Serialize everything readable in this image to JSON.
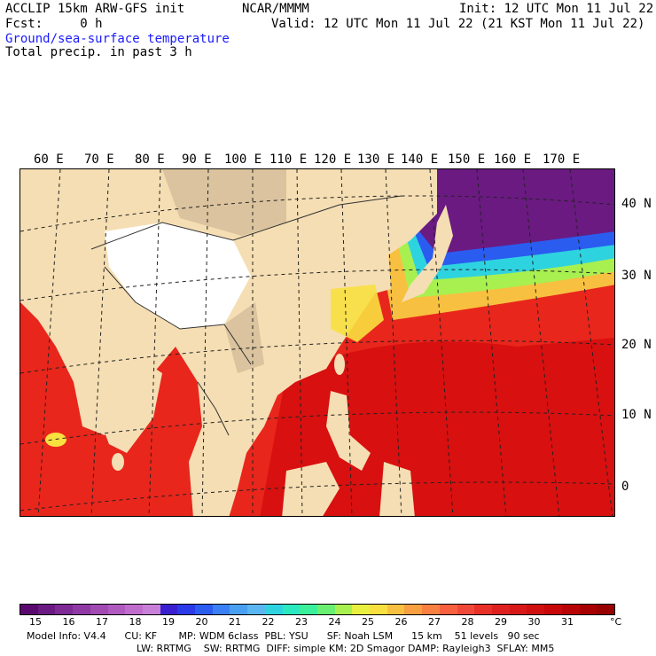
{
  "header": {
    "model_title": "ACCLIP 15km ARW-GFS init",
    "center": "NCAR/MMMM",
    "init": "Init: 12 UTC Mon 11 Jul 22",
    "fcst": "Fcst:     0 h",
    "valid": "Valid: 12 UTC Mon 11 Jul 22 (21 KST Mon 11 Jul 22)",
    "field1": "Ground/sea-surface temperature",
    "field2": "Total precip. in past 3 h"
  },
  "map": {
    "lon_labels": [
      "60 E",
      "70 E",
      "80 E",
      "90 E",
      "100 E",
      "110 E",
      "120 E",
      "130 E",
      "140 E",
      "150 E",
      "160 E",
      "170 E"
    ],
    "lat_labels": [
      "40 N",
      "30 N",
      "20 N",
      "10 N",
      "0"
    ],
    "colors": {
      "land": "#f5deb3",
      "ocean_warm": "#e8261c",
      "ocean_hot": "#d81010",
      "border": "#333333",
      "grid": "#222222",
      "snow": "#ffffff"
    }
  },
  "colorbar": {
    "unit": "°C",
    "tick_labels": [
      "15",
      "16",
      "17",
      "18",
      "19",
      "20",
      "21",
      "22",
      "23",
      "24",
      "25",
      "26",
      "27",
      "28",
      "29",
      "30",
      "31"
    ],
    "colors": [
      "#5a0a6e",
      "#6b1a82",
      "#7d2a94",
      "#8f3aa4",
      "#a04ab2",
      "#b05abf",
      "#c06ccc",
      "#c87fd8",
      "#3a1fd0",
      "#2a3ae8",
      "#2a5cf0",
      "#3a80f4",
      "#4aa0f0",
      "#5ab6f0",
      "#2ed3e0",
      "#2ae8c0",
      "#3af09a",
      "#6af070",
      "#a8f050",
      "#e8f040",
      "#f8e040",
      "#f8c040",
      "#f8a040",
      "#f88040",
      "#f86040",
      "#f04838",
      "#e83028",
      "#e02020",
      "#d81818",
      "#d01010",
      "#c80808",
      "#b80404",
      "#a80000",
      "#980000"
    ]
  },
  "footer": {
    "line1": "Model Info: V4.4      CU: KF       MP: WDM 6class  PBL: YSU      SF: Noah LSM      15 km    51 levels   90 sec",
    "line2": "LW: RRTMG    SW: RRTMG  DIFF: simple KM: 2D Smagor DAMP: Rayleigh3  SFLAY: MM5"
  }
}
